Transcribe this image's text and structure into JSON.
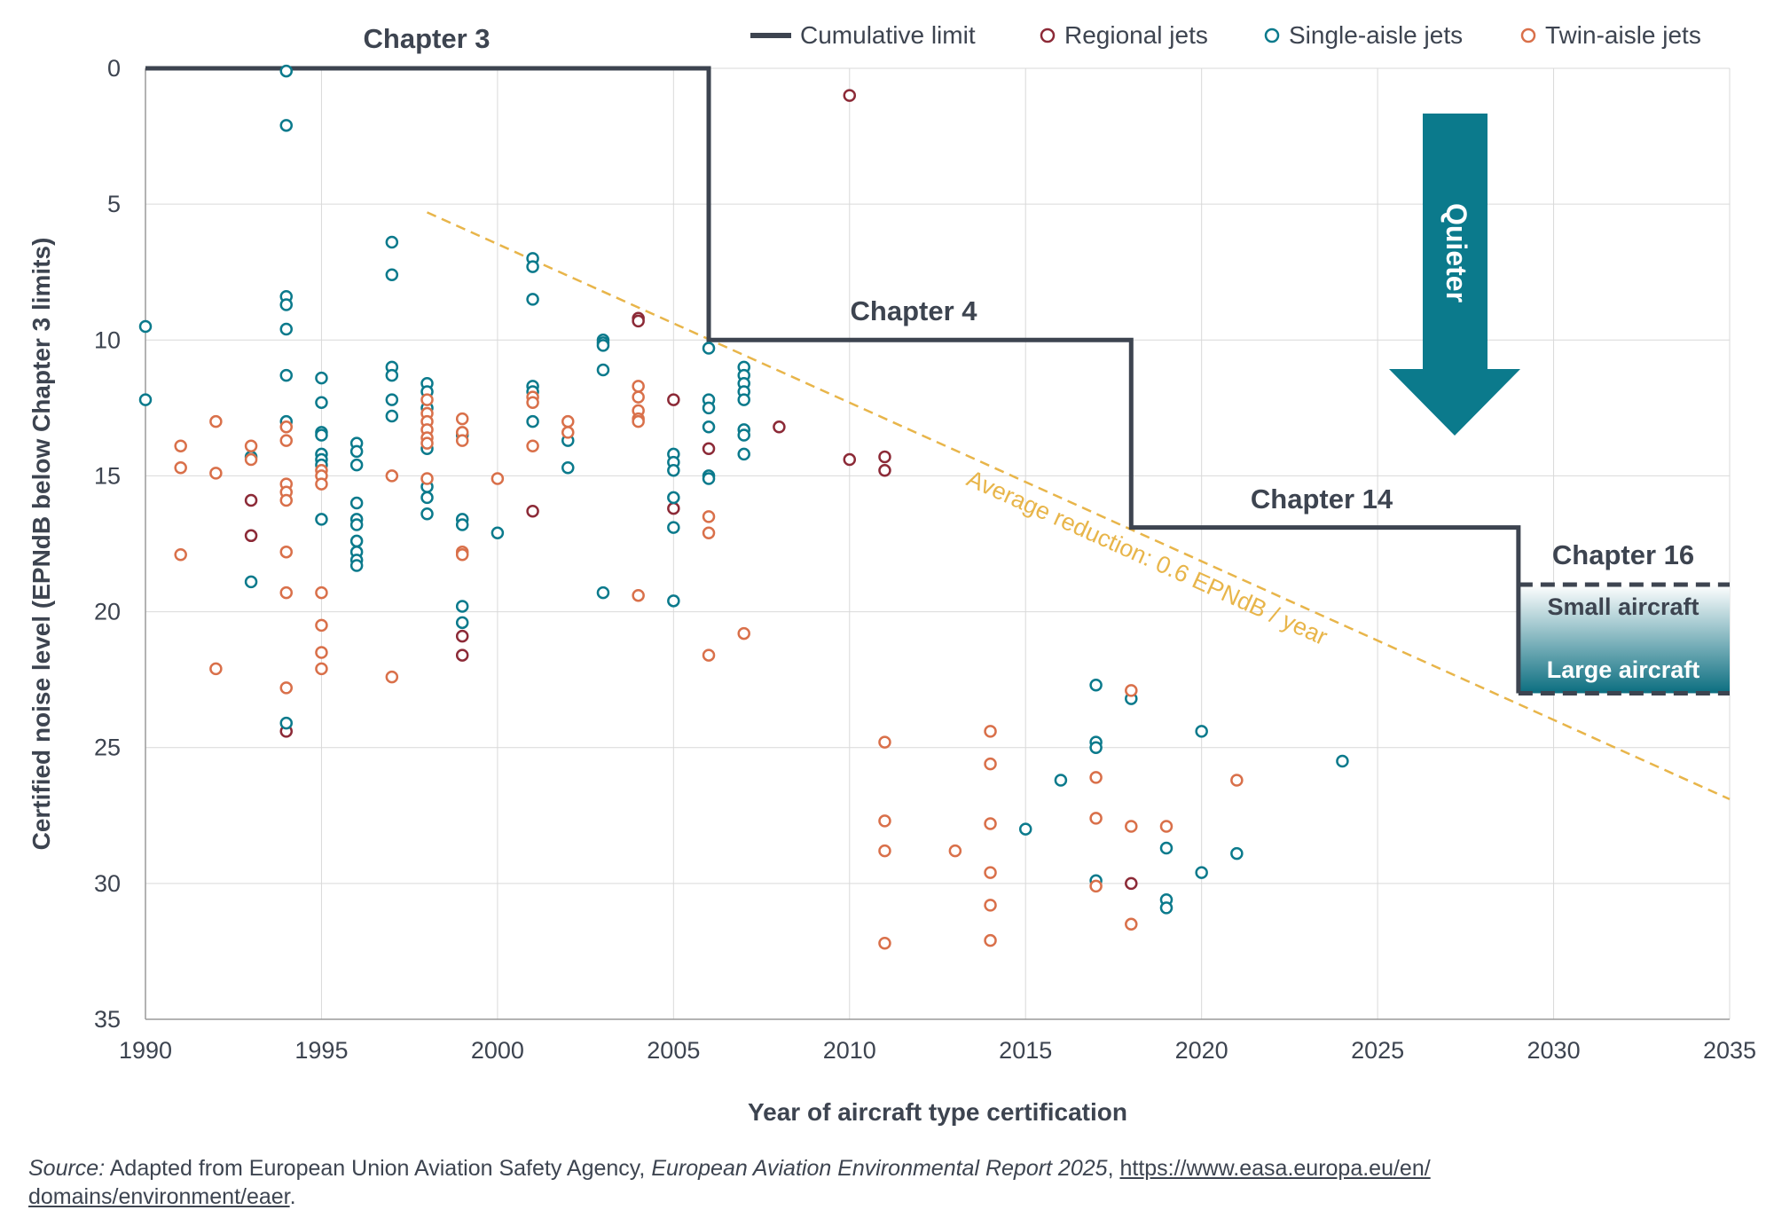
{
  "chart_data": {
    "type": "scatter",
    "xlabel": "Year of aircraft type certification",
    "ylabel": "Certified noise level (EPNdB below Chapter 3 limits)",
    "xlim": [
      1990,
      2035
    ],
    "ylim": [
      0,
      35
    ],
    "y_inverted": true,
    "x_ticks": [
      "1990",
      "1995",
      "2000",
      "2005",
      "2010",
      "2015",
      "2020",
      "2025",
      "2030",
      "2035"
    ],
    "y_ticks": [
      "0",
      "5",
      "10",
      "15",
      "20",
      "25",
      "30",
      "35"
    ],
    "grid": true,
    "legend_position": "top-right",
    "legend": {
      "limit": "Cumulative limit",
      "regional": "Regional jets",
      "single": "Single-aisle jets",
      "twin": "Twin-aisle jets"
    },
    "colors": {
      "limit": "#3d4450",
      "regional": "#8c2a37",
      "single": "#0b7a8c",
      "twin": "#d9704a",
      "trend": "#e8b54a",
      "arrow": "#0b7a8c",
      "grid": "#d9d9d9"
    },
    "series": [
      {
        "name": "Regional jets",
        "key": "regional",
        "points": [
          [
            1993,
            15.9
          ],
          [
            1993,
            17.2
          ],
          [
            1994,
            24.4
          ],
          [
            1999,
            20.9
          ],
          [
            1999,
            21.6
          ],
          [
            2001,
            16.3
          ],
          [
            2004,
            9.2
          ],
          [
            2004,
            9.3
          ],
          [
            2005,
            12.2
          ],
          [
            2005,
            16.2
          ],
          [
            2006,
            14.0
          ],
          [
            2008,
            13.2
          ],
          [
            2010,
            1.0
          ],
          [
            2010,
            14.4
          ],
          [
            2011,
            14.3
          ],
          [
            2011,
            14.8
          ],
          [
            2018,
            30.0
          ]
        ]
      },
      {
        "name": "Single-aisle jets",
        "key": "single",
        "points": [
          [
            1990,
            9.5
          ],
          [
            1990,
            12.2
          ],
          [
            1993,
            14.3
          ],
          [
            1993,
            18.9
          ],
          [
            1994,
            0.1
          ],
          [
            1994,
            2.1
          ],
          [
            1994,
            8.4
          ],
          [
            1994,
            8.7
          ],
          [
            1994,
            9.6
          ],
          [
            1994,
            11.3
          ],
          [
            1994,
            13.0
          ],
          [
            1994,
            24.1
          ],
          [
            1995,
            11.4
          ],
          [
            1995,
            12.3
          ],
          [
            1995,
            13.4
          ],
          [
            1995,
            13.5
          ],
          [
            1995,
            14.2
          ],
          [
            1995,
            14.4
          ],
          [
            1995,
            14.6
          ],
          [
            1995,
            16.6
          ],
          [
            1996,
            13.8
          ],
          [
            1996,
            14.1
          ],
          [
            1996,
            14.6
          ],
          [
            1996,
            16.0
          ],
          [
            1996,
            16.6
          ],
          [
            1996,
            16.8
          ],
          [
            1996,
            17.4
          ],
          [
            1996,
            17.8
          ],
          [
            1996,
            18.1
          ],
          [
            1996,
            18.3
          ],
          [
            1997,
            6.4
          ],
          [
            1997,
            7.6
          ],
          [
            1997,
            11.0
          ],
          [
            1997,
            11.3
          ],
          [
            1997,
            12.2
          ],
          [
            1997,
            12.8
          ],
          [
            1998,
            11.6
          ],
          [
            1998,
            11.9
          ],
          [
            1998,
            12.5
          ],
          [
            1998,
            14.0
          ],
          [
            1998,
            15.4
          ],
          [
            1998,
            15.8
          ],
          [
            1998,
            16.4
          ],
          [
            1999,
            13.5
          ],
          [
            1999,
            16.6
          ],
          [
            1999,
            16.8
          ],
          [
            1999,
            19.8
          ],
          [
            1999,
            20.4
          ],
          [
            2000,
            17.1
          ],
          [
            2001,
            7.0
          ],
          [
            2001,
            7.3
          ],
          [
            2001,
            8.5
          ],
          [
            2001,
            11.7
          ],
          [
            2001,
            11.9
          ],
          [
            2001,
            13.0
          ],
          [
            2002,
            13.7
          ],
          [
            2002,
            14.7
          ],
          [
            2003,
            10.0
          ],
          [
            2003,
            10.1
          ],
          [
            2003,
            10.2
          ],
          [
            2003,
            11.1
          ],
          [
            2003,
            19.3
          ],
          [
            2005,
            14.2
          ],
          [
            2005,
            14.5
          ],
          [
            2005,
            14.8
          ],
          [
            2005,
            15.8
          ],
          [
            2005,
            16.9
          ],
          [
            2005,
            19.6
          ],
          [
            2006,
            10.3
          ],
          [
            2006,
            12.2
          ],
          [
            2006,
            12.5
          ],
          [
            2006,
            13.2
          ],
          [
            2006,
            15.0
          ],
          [
            2006,
            15.1
          ],
          [
            2007,
            11.0
          ],
          [
            2007,
            11.3
          ],
          [
            2007,
            11.6
          ],
          [
            2007,
            11.9
          ],
          [
            2007,
            12.2
          ],
          [
            2007,
            13.3
          ],
          [
            2007,
            13.5
          ],
          [
            2007,
            14.2
          ],
          [
            2015,
            28.0
          ],
          [
            2016,
            26.2
          ],
          [
            2017,
            22.7
          ],
          [
            2017,
            24.8
          ],
          [
            2017,
            25.0
          ],
          [
            2017,
            29.9
          ],
          [
            2018,
            23.2
          ],
          [
            2019,
            28.7
          ],
          [
            2019,
            30.6
          ],
          [
            2019,
            30.9
          ],
          [
            2020,
            24.4
          ],
          [
            2020,
            29.6
          ],
          [
            2021,
            28.9
          ],
          [
            2024,
            25.5
          ]
        ]
      },
      {
        "name": "Twin-aisle jets",
        "key": "twin",
        "points": [
          [
            1991,
            13.9
          ],
          [
            1991,
            14.7
          ],
          [
            1991,
            17.9
          ],
          [
            1992,
            13.0
          ],
          [
            1992,
            14.9
          ],
          [
            1992,
            22.1
          ],
          [
            1993,
            13.9
          ],
          [
            1993,
            14.4
          ],
          [
            1994,
            13.2
          ],
          [
            1994,
            13.7
          ],
          [
            1994,
            15.3
          ],
          [
            1994,
            15.6
          ],
          [
            1994,
            15.9
          ],
          [
            1994,
            17.8
          ],
          [
            1994,
            19.3
          ],
          [
            1994,
            22.8
          ],
          [
            1995,
            14.8
          ],
          [
            1995,
            15.0
          ],
          [
            1995,
            15.3
          ],
          [
            1995,
            19.3
          ],
          [
            1995,
            20.5
          ],
          [
            1995,
            21.5
          ],
          [
            1995,
            22.1
          ],
          [
            1997,
            15.0
          ],
          [
            1997,
            22.4
          ],
          [
            1998,
            12.2
          ],
          [
            1998,
            12.7
          ],
          [
            1998,
            13.0
          ],
          [
            1998,
            13.3
          ],
          [
            1998,
            13.6
          ],
          [
            1998,
            13.8
          ],
          [
            1998,
            15.1
          ],
          [
            1999,
            12.9
          ],
          [
            1999,
            13.4
          ],
          [
            1999,
            13.7
          ],
          [
            1999,
            17.8
          ],
          [
            1999,
            17.9
          ],
          [
            2000,
            15.1
          ],
          [
            2001,
            12.1
          ],
          [
            2001,
            12.3
          ],
          [
            2001,
            13.9
          ],
          [
            2002,
            13.0
          ],
          [
            2002,
            13.4
          ],
          [
            2004,
            11.7
          ],
          [
            2004,
            12.1
          ],
          [
            2004,
            12.6
          ],
          [
            2004,
            12.9
          ],
          [
            2004,
            13.0
          ],
          [
            2004,
            19.4
          ],
          [
            2006,
            16.5
          ],
          [
            2006,
            17.1
          ],
          [
            2006,
            21.6
          ],
          [
            2007,
            20.8
          ],
          [
            2011,
            24.8
          ],
          [
            2011,
            27.7
          ],
          [
            2011,
            28.8
          ],
          [
            2011,
            32.2
          ],
          [
            2013,
            28.8
          ],
          [
            2014,
            24.4
          ],
          [
            2014,
            25.6
          ],
          [
            2014,
            27.8
          ],
          [
            2014,
            29.6
          ],
          [
            2014,
            30.8
          ],
          [
            2014,
            32.1
          ],
          [
            2017,
            26.1
          ],
          [
            2017,
            27.6
          ],
          [
            2017,
            30.1
          ],
          [
            2018,
            22.9
          ],
          [
            2018,
            27.9
          ],
          [
            2018,
            31.5
          ],
          [
            2019,
            27.9
          ],
          [
            2021,
            26.2
          ]
        ]
      }
    ],
    "cumulative_limit": [
      [
        1990,
        0
      ],
      [
        2006,
        0
      ],
      [
        2006,
        10
      ],
      [
        2018,
        10
      ],
      [
        2018,
        16.9
      ],
      [
        2029,
        16.9
      ],
      [
        2029,
        23
      ]
    ],
    "chapter16_small": [
      [
        2029,
        19
      ],
      [
        2035,
        19
      ]
    ],
    "chapter16_large": [
      [
        2029,
        23
      ],
      [
        2035,
        23
      ]
    ],
    "trend_line": {
      "label": "Average reduction: 0.6 EPNdB / year",
      "from": [
        1998,
        5.3
      ],
      "to": [
        2035,
        26.9
      ]
    },
    "annotations": {
      "chapter3": "Chapter 3",
      "chapter4": "Chapter 4",
      "chapter14": "Chapter 14",
      "chapter16": "Chapter 16",
      "small_aircraft": "Small aircraft",
      "large_aircraft": "Large aircraft",
      "quieter": "Quieter"
    }
  },
  "source": {
    "label": "Source:",
    "text": " Adapted from European Union Aviation Safety Agency, ",
    "report": "European Aviation Environmental Report 2025",
    "comma": ", ",
    "url_line1": "https://www.easa.europa.eu/en/",
    "url_line2": "domains/environment/eaer",
    "end": "."
  }
}
